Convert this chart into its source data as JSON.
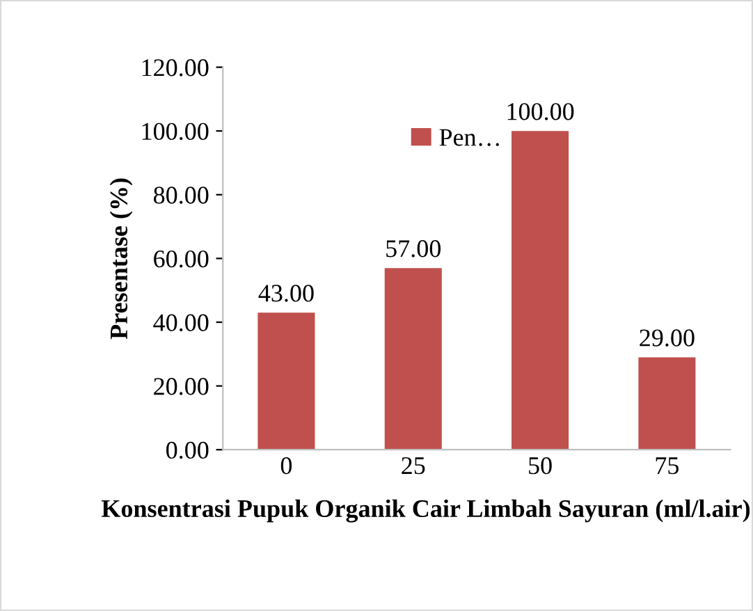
{
  "chart_data": {
    "type": "bar",
    "xlabel": "Konsentrasi Pupuk Organik Cair Limbah Sayuran (ml/l.air)",
    "ylabel": "Presentase (%)",
    "categories": [
      "0",
      "25",
      "50",
      "75"
    ],
    "series": [
      {
        "name": "Pen…",
        "color": "#c0504d",
        "values": [
          43,
          57,
          100,
          29
        ],
        "value_labels": [
          "43.00",
          "57.00",
          "100.00",
          "29.00"
        ]
      }
    ],
    "ylim": [
      0,
      120
    ],
    "yticks": [
      {
        "value": 0,
        "label": "0.00"
      },
      {
        "value": 20,
        "label": "20.00"
      },
      {
        "value": 40,
        "label": "40.00"
      },
      {
        "value": 60,
        "label": "60.00"
      },
      {
        "value": 80,
        "label": "80.00"
      },
      {
        "value": 100,
        "label": "100.00"
      },
      {
        "value": 120,
        "label": "120.00"
      }
    ],
    "legend": "top",
    "grid": false
  }
}
